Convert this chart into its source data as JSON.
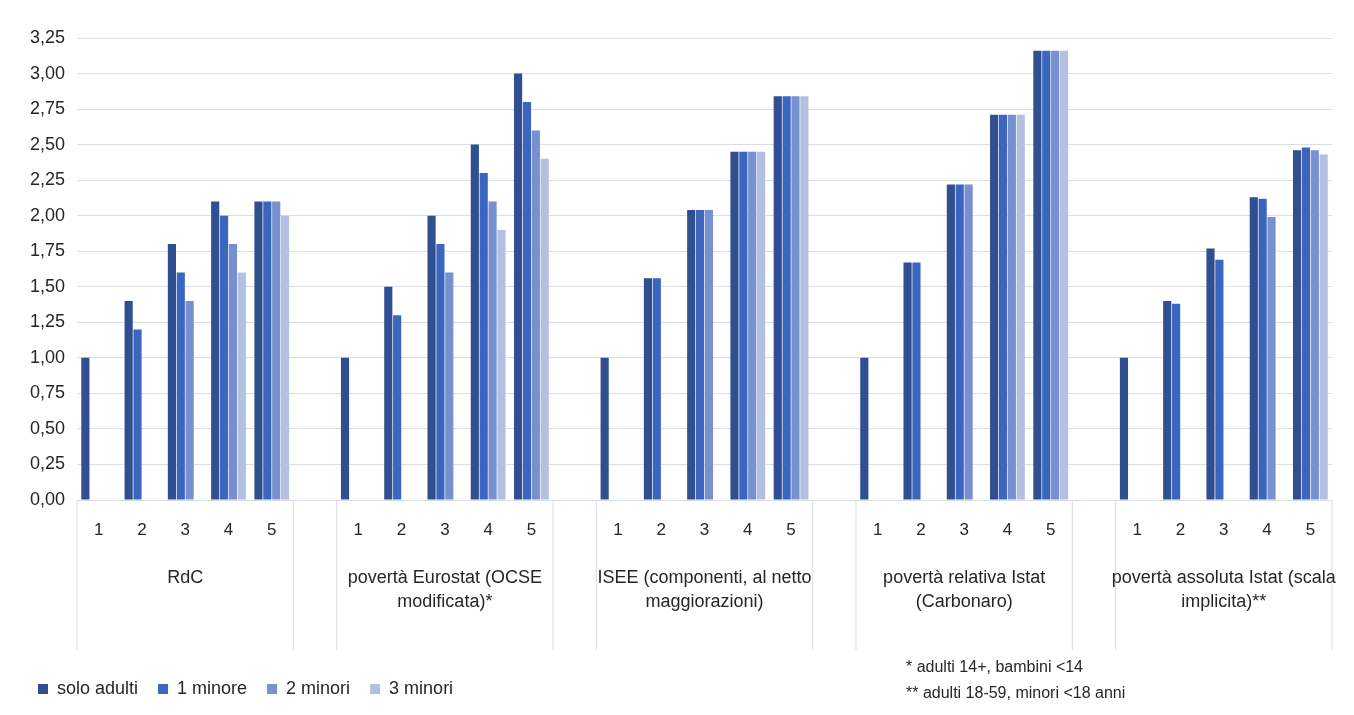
{
  "chart_data": {
    "type": "bar",
    "categories": [
      "1",
      "2",
      "3",
      "4",
      "5",
      null,
      "1",
      "2",
      "3",
      "4",
      "5",
      null,
      "1",
      "2",
      "3",
      "4",
      "5",
      null,
      "1",
      "2",
      "3",
      "4",
      "5",
      null,
      "1",
      "2",
      "3",
      "4",
      "5"
    ],
    "series": [
      {
        "name": "solo adulti",
        "color": "#2f4f91",
        "values": [
          1,
          1.4,
          1.8,
          2.1,
          2.1,
          null,
          1,
          1.5,
          2,
          2.5,
          3,
          null,
          1,
          1.56,
          2.04,
          2.45,
          2.84,
          null,
          1,
          1.67,
          2.22,
          2.71,
          3.16,
          null,
          1,
          1.4,
          1.77,
          2.13,
          2.46
        ]
      },
      {
        "name": "1 minore",
        "color": "#3a66c0",
        "values": [
          null,
          1.2,
          1.6,
          2,
          2.1,
          null,
          null,
          1.3,
          1.8,
          2.3,
          2.8,
          null,
          null,
          1.56,
          2.04,
          2.45,
          2.84,
          null,
          null,
          1.67,
          2.22,
          2.71,
          3.16,
          null,
          null,
          1.38,
          1.69,
          2.12,
          2.48
        ]
      },
      {
        "name": "2 minori",
        "color": "#7990d0",
        "values": [
          null,
          null,
          1.4,
          1.8,
          2.1,
          null,
          null,
          null,
          1.6,
          2.1,
          2.6,
          null,
          null,
          null,
          2.04,
          2.45,
          2.84,
          null,
          null,
          null,
          2.22,
          2.71,
          3.16,
          null,
          null,
          null,
          null,
          1.99,
          2.46
        ]
      },
      {
        "name": "3 minori",
        "color": "#b4c0e2",
        "values": [
          null,
          null,
          null,
          1.6,
          2,
          null,
          null,
          null,
          null,
          1.9,
          2.4,
          null,
          null,
          null,
          null,
          2.45,
          2.84,
          null,
          null,
          null,
          null,
          2.71,
          3.16,
          null,
          null,
          null,
          null,
          null,
          2.43
        ]
      }
    ],
    "ylim": [
      0,
      3.25
    ],
    "yticks": [
      {
        "value": 0,
        "label": "0,00"
      },
      {
        "value": 0.25,
        "label": "0,25"
      },
      {
        "value": 0.5,
        "label": "0,50"
      },
      {
        "value": 0.75,
        "label": "0,75"
      },
      {
        "value": 1,
        "label": "1,00"
      },
      {
        "value": 1.25,
        "label": "1,25"
      },
      {
        "value": 1.5,
        "label": "1,50"
      },
      {
        "value": 1.75,
        "label": "1,75"
      },
      {
        "value": 2,
        "label": "2,00"
      },
      {
        "value": 2.25,
        "label": "2,25"
      },
      {
        "value": 2.5,
        "label": "2,50"
      },
      {
        "value": 2.75,
        "label": "2,75"
      },
      {
        "value": 3,
        "label": "3,00"
      },
      {
        "value": 3.25,
        "label": "3,25"
      }
    ],
    "grid": "y",
    "legend": "bottom left",
    "annotations": [
      "RdC",
      "povertà Eurostat (OCSE modificata)*",
      "ISEE (componenti, al netto maggiorazioni)",
      "povertà relativa Istat (Carbonaro)",
      "povertà assoluta Istat (scala implicita)**",
      "* adulti 14+, bambini <14",
      "** adulti 18-59, minori <18 anni"
    ]
  }
}
